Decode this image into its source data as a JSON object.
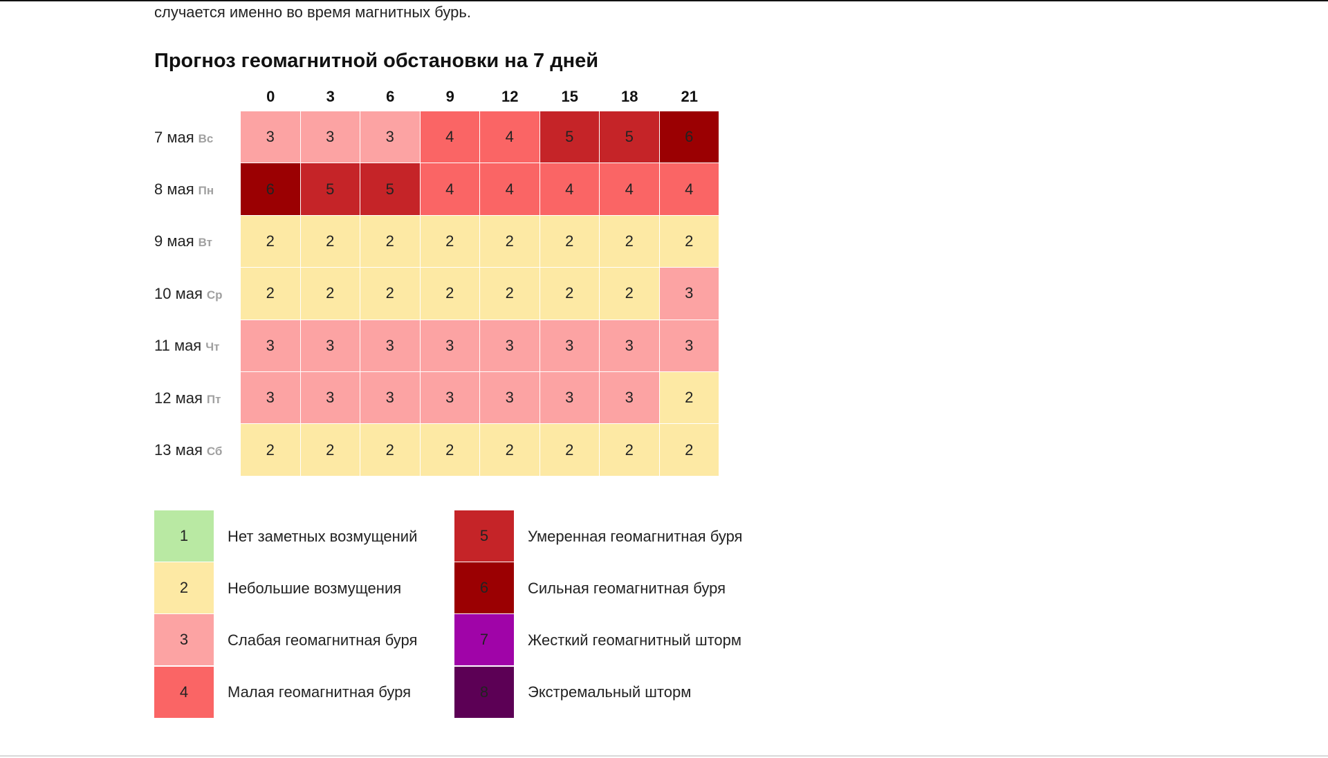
{
  "intro_text": "случается именно во время магнитных бурь.",
  "title": "Прогноз геомагнитной обстановки на 7 дней",
  "chart_data": {
    "type": "heatmap",
    "title": "Прогноз геомагнитной обстановки на 7 дней",
    "x": [
      "0",
      "3",
      "6",
      "9",
      "12",
      "15",
      "18",
      "21"
    ],
    "rows": [
      {
        "date": "7 мая",
        "dow": "Вс",
        "values": [
          3,
          3,
          3,
          4,
          4,
          5,
          5,
          6
        ]
      },
      {
        "date": "8 мая",
        "dow": "Пн",
        "values": [
          6,
          5,
          5,
          4,
          4,
          4,
          4,
          4
        ]
      },
      {
        "date": "9 мая",
        "dow": "Вт",
        "values": [
          2,
          2,
          2,
          2,
          2,
          2,
          2,
          2
        ]
      },
      {
        "date": "10 мая",
        "dow": "Ср",
        "values": [
          2,
          2,
          2,
          2,
          2,
          2,
          2,
          3
        ]
      },
      {
        "date": "11 мая",
        "dow": "Чт",
        "values": [
          3,
          3,
          3,
          3,
          3,
          3,
          3,
          3
        ]
      },
      {
        "date": "12 мая",
        "dow": "Пт",
        "values": [
          3,
          3,
          3,
          3,
          3,
          3,
          3,
          2
        ]
      },
      {
        "date": "13 мая",
        "dow": "Сб",
        "values": [
          2,
          2,
          2,
          2,
          2,
          2,
          2,
          2
        ]
      }
    ],
    "level_colors": {
      "1": "#b9e9a3",
      "2": "#fde9a4",
      "3": "#fca3a3",
      "4": "#fa6565",
      "5": "#c52428",
      "6": "#9b0002",
      "7": "#a004a8",
      "8": "#5c0055"
    },
    "legend": [
      {
        "level": "1",
        "label": "Нет заметных возмущений"
      },
      {
        "level": "2",
        "label": "Небольшие возмущения"
      },
      {
        "level": "3",
        "label": "Слабая геомагнитная буря"
      },
      {
        "level": "4",
        "label": "Малая геомагнитная буря"
      },
      {
        "level": "5",
        "label": "Умеренная геомагнитная буря"
      },
      {
        "level": "6",
        "label": "Сильная геомагнитная буря"
      },
      {
        "level": "7",
        "label": "Жесткий геомагнитный шторм"
      },
      {
        "level": "8",
        "label": "Экстремальный шторм"
      }
    ]
  }
}
